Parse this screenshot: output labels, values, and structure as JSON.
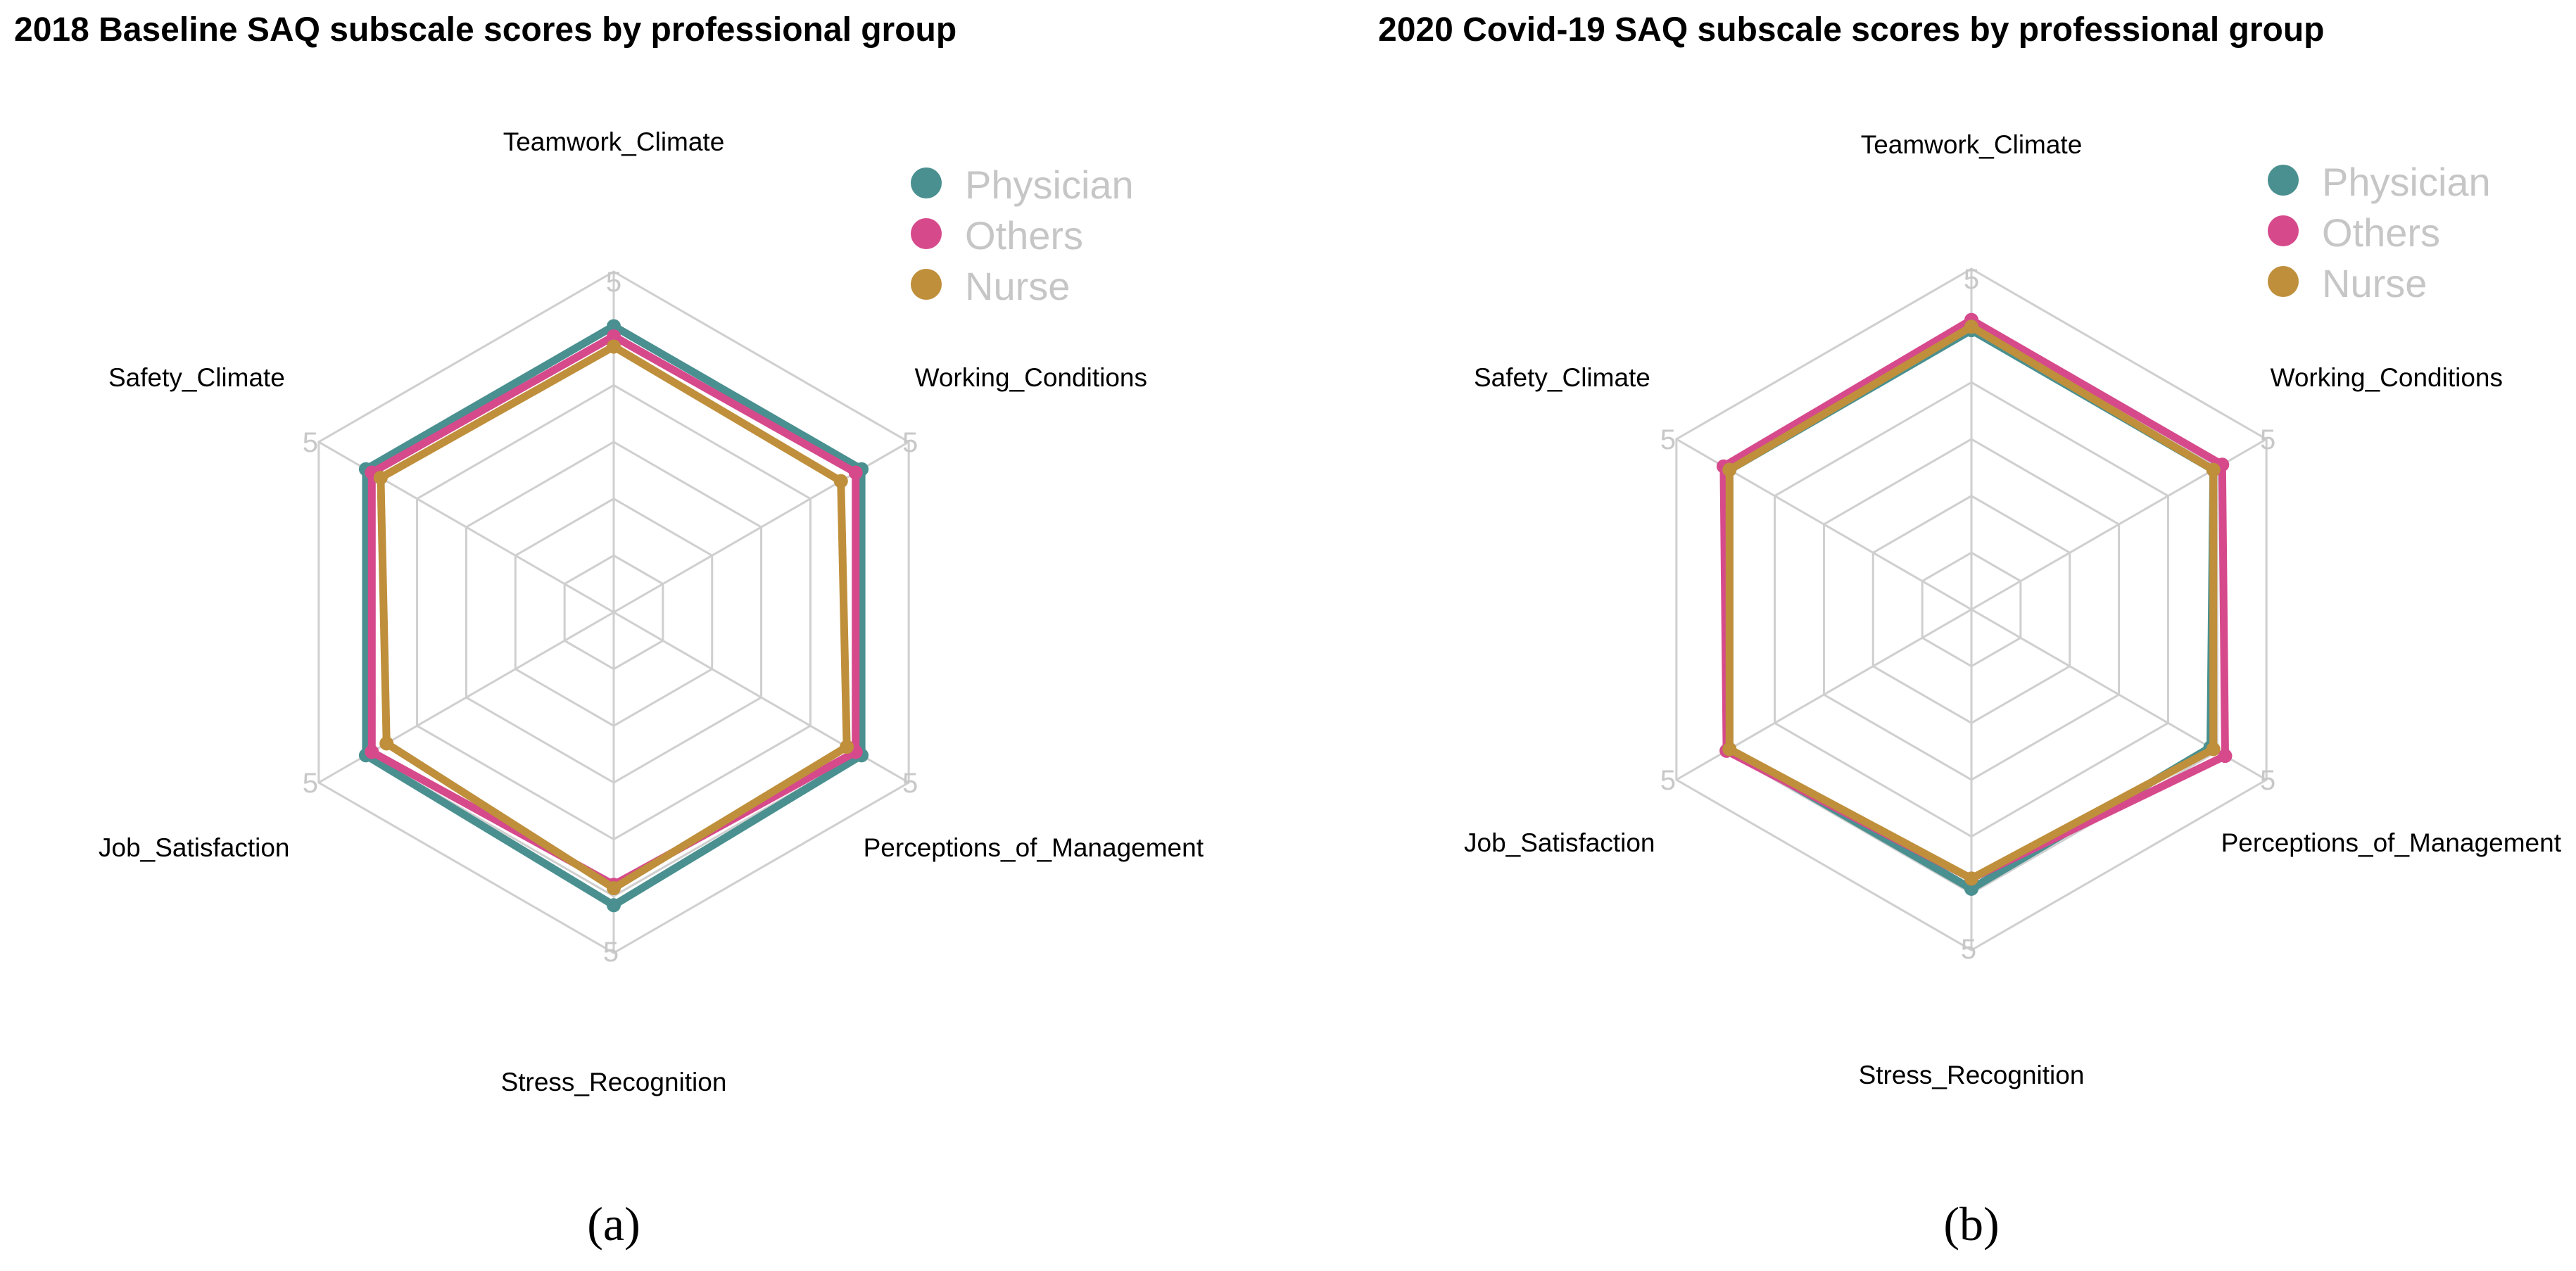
{
  "chart_data": [
    {
      "type": "radar",
      "title": "2018 Baseline SAQ subscale scores by professional group",
      "caption": "(a)",
      "axes": [
        "Teamwork_Climate",
        "Working_Conditions",
        "Perceptions_of_Management",
        "Stress_Recognition",
        "Job_Satisfaction",
        "Safety_Climate"
      ],
      "axis_max_label": "5",
      "range": [
        0,
        5
      ],
      "grid_levels": 6,
      "legend_position": "top-right",
      "series": [
        {
          "name": "Physician",
          "color": "#4A9090",
          "values": [
            4.2,
            4.2,
            4.2,
            4.3,
            4.2,
            4.2
          ]
        },
        {
          "name": "Others",
          "color": "#D64A8C",
          "values": [
            4.05,
            4.1,
            4.1,
            4.0,
            4.1,
            4.1
          ]
        },
        {
          "name": "Nurse",
          "color": "#BF8F3B",
          "values": [
            3.9,
            3.85,
            3.95,
            4.05,
            3.85,
            3.95
          ]
        }
      ]
    },
    {
      "type": "radar",
      "title": "2020 Covid-19 SAQ subscale scores by professional group",
      "caption": "(b)",
      "axes": [
        "Teamwork_Climate",
        "Working_Conditions",
        "Perceptions_of_Management",
        "Stress_Recognition",
        "Job_Satisfaction",
        "Safety_Climate"
      ],
      "axis_max_label": "5",
      "range": [
        0,
        5
      ],
      "grid_levels": 6,
      "legend_position": "top-right",
      "series": [
        {
          "name": "Physician",
          "color": "#4A9090",
          "values": [
            4.1,
            4.1,
            4.05,
            4.1,
            4.1,
            4.1
          ]
        },
        {
          "name": "Others",
          "color": "#D64A8C",
          "values": [
            4.25,
            4.25,
            4.3,
            3.95,
            4.15,
            4.2
          ]
        },
        {
          "name": "Nurse",
          "color": "#BF8F3B",
          "values": [
            4.15,
            4.1,
            4.1,
            3.95,
            4.1,
            4.1
          ]
        }
      ]
    }
  ]
}
